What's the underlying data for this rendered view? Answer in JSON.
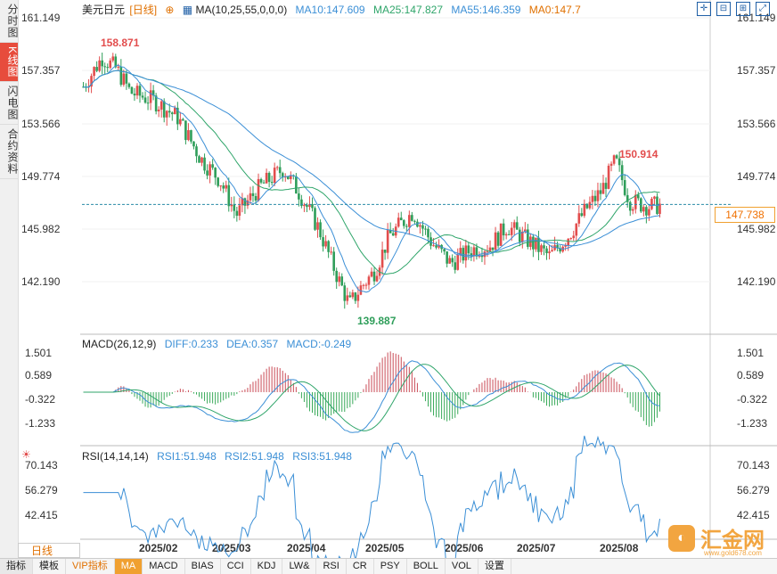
{
  "sidebar": {
    "tabs": [
      "分时图",
      "K线图",
      "闪电图",
      "合约资料"
    ],
    "active_index": 1
  },
  "main": {
    "legend": {
      "symbol": "美元日元",
      "period": "[日线]",
      "ma_label": "MA(10,25,55,0,0,0)",
      "ma10": "MA10:147.609",
      "ma25": "MA25:147.827",
      "ma55": "MA55:146.359",
      "ma0": "MA0:147.7"
    },
    "price_axis": [
      "161.149",
      "157.357",
      "153.566",
      "149.774",
      "145.982",
      "142.190"
    ],
    "current_price": "147.738",
    "annotations": {
      "high": "158.871",
      "peak2": "150.914",
      "low": "139.887"
    }
  },
  "macd": {
    "label": "MACD(26,12,9)",
    "diff": "DIFF:0.233",
    "dea": "DEA:0.357",
    "macd": "MACD:-0.249",
    "axis": [
      "1.501",
      "0.589",
      "-0.322",
      "-1.233"
    ]
  },
  "rsi": {
    "label": "RSI(14,14,14)",
    "rsi1": "RSI1:51.948",
    "rsi2": "RSI2:51.948",
    "rsi3": "RSI3:51.948",
    "axis": [
      "70.143",
      "56.279",
      "42.415"
    ]
  },
  "x_axis": [
    "2025/02",
    "2025/03",
    "2025/04",
    "2025/05",
    "2025/06",
    "2025/07",
    "2025/08"
  ],
  "bottom_bar": [
    "指标",
    "模板",
    "VIP指标",
    "MA",
    "MACD",
    "BIAS",
    "CCI",
    "KDJ",
    "LW&",
    "RSI",
    "CR",
    "PSY",
    "BOLL",
    "VOL",
    "设置"
  ],
  "period_button": "日线",
  "brand": {
    "name": "汇金网",
    "domain": "www.gold678.com"
  },
  "colors": {
    "up": "#e24d4d",
    "down": "#2f9e5a",
    "ma10": "#3b8fd6",
    "ma25": "#2fa56a",
    "ma55": "#3b8fd6",
    "macd_pos": "#c94a55",
    "macd_neg": "#3aaa5a"
  }
}
